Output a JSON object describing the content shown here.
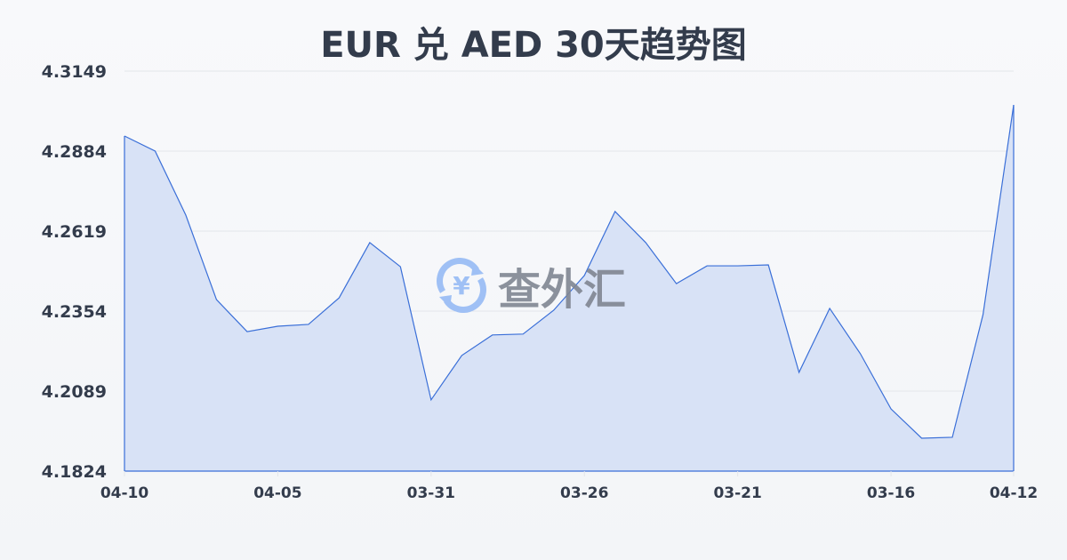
{
  "chart_data": {
    "type": "area",
    "title": "EUR 兑 AED 30天趋势图",
    "xlabel": "",
    "ylabel": "",
    "x_tick_labels": [
      "04-10",
      "04-05",
      "03-31",
      "03-26",
      "03-21",
      "03-16",
      "04-12"
    ],
    "y_tick_labels": [
      "4.3149",
      "4.2884",
      "4.2619",
      "4.2354",
      "4.2089",
      "4.1824"
    ],
    "ylim": [
      4.1824,
      4.3149
    ],
    "grid": true,
    "values": [
      4.2934,
      4.2884,
      4.2672,
      4.2392,
      4.2286,
      4.2304,
      4.231,
      4.2398,
      4.2581,
      4.2501,
      4.206,
      4.2207,
      4.2275,
      4.2278,
      4.2357,
      4.2472,
      4.2684,
      4.2581,
      4.2445,
      4.2504,
      4.2504,
      4.2507,
      4.2151,
      4.2363,
      4.2213,
      4.203,
      4.1933,
      4.1936,
      4.2342,
      4.3037
    ],
    "colors": {
      "line": "#3a6fd8",
      "fill": "#d6e0f5",
      "grid": "#e3e6ea",
      "text": "#333c4c"
    }
  },
  "watermark": {
    "text": "查外汇",
    "icon": "yen-exchange-icon"
  }
}
